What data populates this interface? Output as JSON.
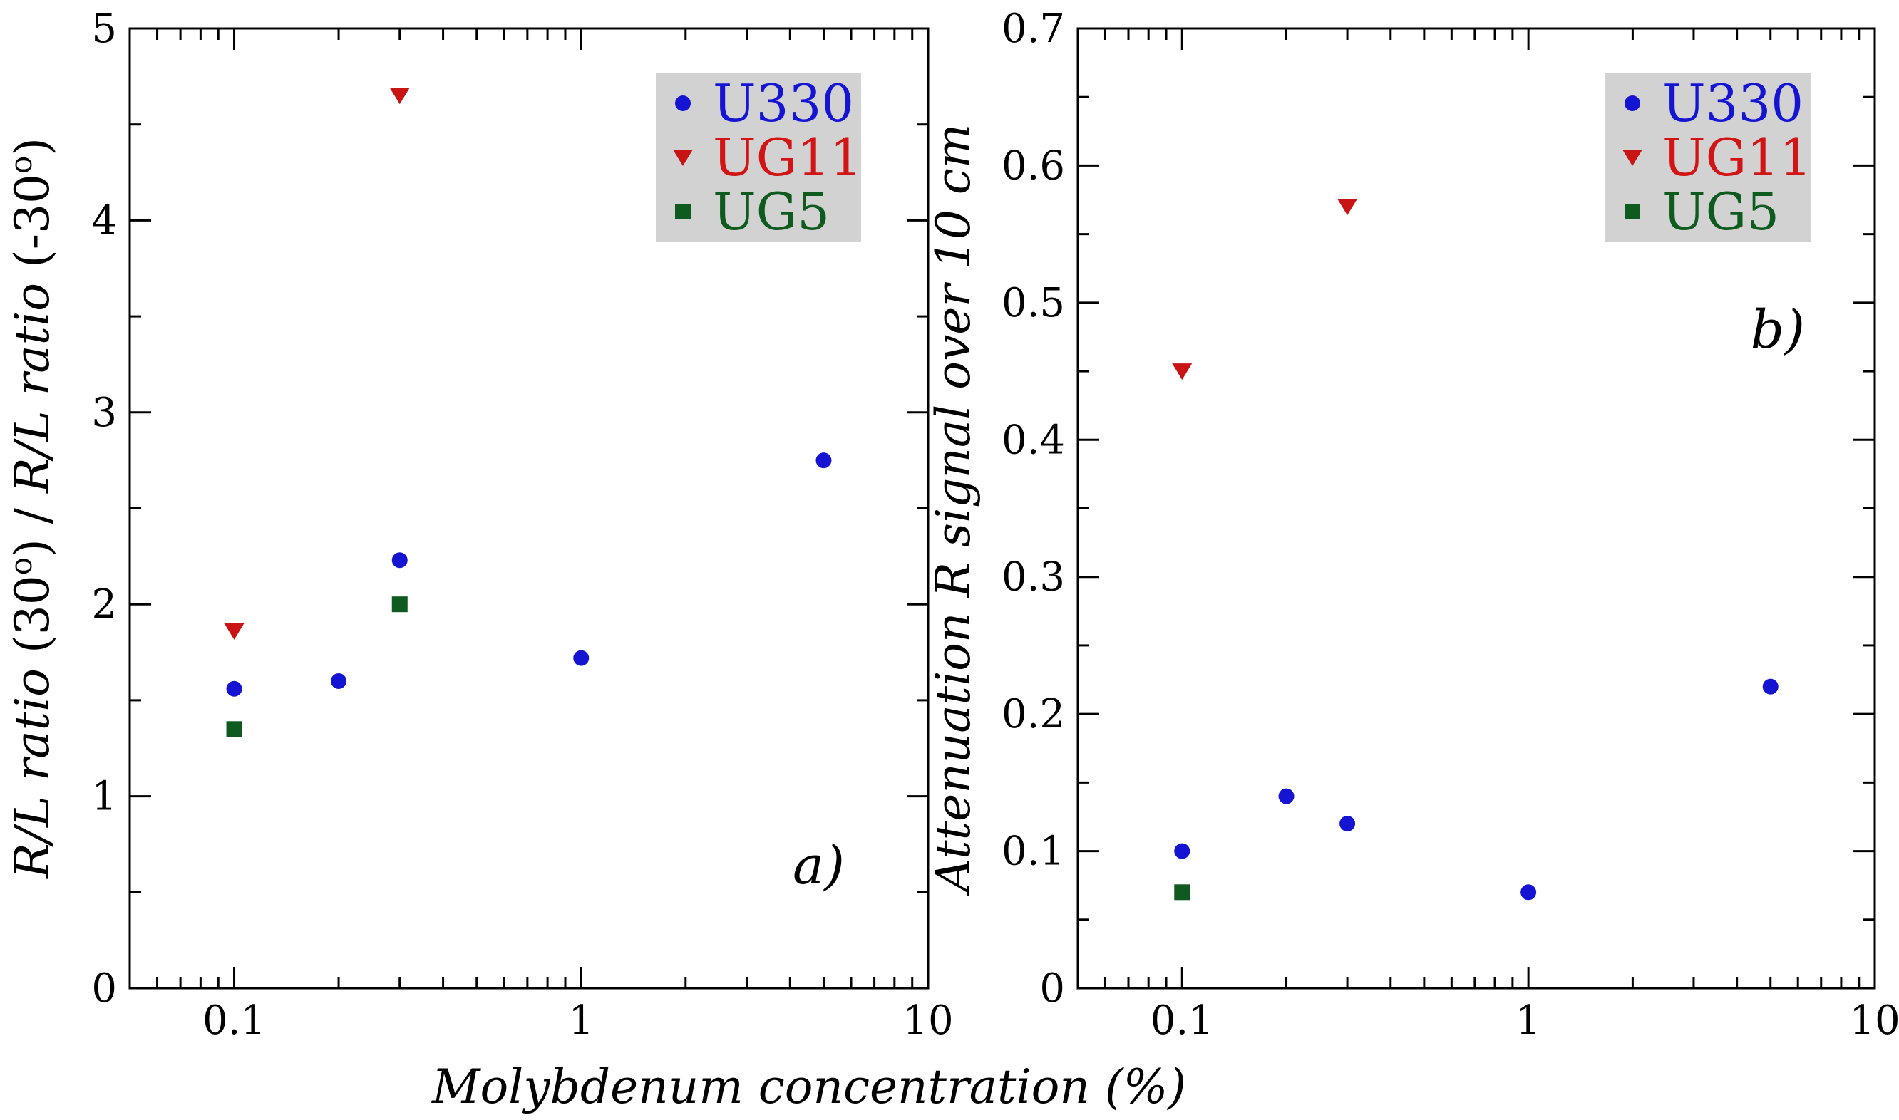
{
  "figure": {
    "xlabel": "Molybdenum concentration (%)"
  },
  "chart_data": [
    {
      "type": "scatter",
      "panel_label": "a)",
      "ylabel_parts": [
        "R/L ratio",
        " (30",
        "o",
        ") / ",
        "R/L ratio",
        " (-30",
        "o",
        ")"
      ],
      "xscale": "log",
      "xlim": [
        0.05,
        10
      ],
      "ylim": [
        0,
        5
      ],
      "xticks": [
        0.1,
        1,
        10
      ],
      "xtick_labels": [
        "0.1",
        "1",
        "10"
      ],
      "yticks": [
        0,
        1,
        2,
        3,
        4,
        5
      ],
      "ytick_labels": [
        "0",
        "1",
        "2",
        "3",
        "4",
        "5"
      ],
      "legend_position": "top-right",
      "series": [
        {
          "name": "U330",
          "marker": "circle",
          "color": "#1414d2",
          "label_color": "#1414d2",
          "x": [
            0.1,
            0.2,
            0.3,
            1,
            5
          ],
          "y": [
            1.56,
            1.6,
            2.23,
            1.72,
            2.75
          ]
        },
        {
          "name": "UG11",
          "marker": "triangle-down",
          "color": "#c81414",
          "label_color": "#d21414",
          "x": [
            0.1,
            0.3
          ],
          "y": [
            1.86,
            4.65
          ]
        },
        {
          "name": "UG5",
          "marker": "square",
          "color": "#0f5a1e",
          "label_color": "#0f5a1e",
          "x": [
            0.1,
            0.3
          ],
          "y": [
            1.35,
            2.0
          ]
        }
      ]
    },
    {
      "type": "scatter",
      "panel_label": "b)",
      "ylabel_parts": [
        "Attenuation R signal over 10 cm"
      ],
      "xscale": "log",
      "xlim": [
        0.05,
        10
      ],
      "ylim": [
        0,
        0.7
      ],
      "xticks": [
        0.1,
        1,
        10
      ],
      "xtick_labels": [
        "0.1",
        "1",
        "10"
      ],
      "yticks": [
        0,
        0.1,
        0.2,
        0.3,
        0.4,
        0.5,
        0.6,
        0.7
      ],
      "ytick_labels": [
        "0",
        "0.1",
        "0.2",
        "0.3",
        "0.4",
        "0.5",
        "0.6",
        "0.7"
      ],
      "legend_position": "top-right",
      "series": [
        {
          "name": "U330",
          "marker": "circle",
          "color": "#1414d2",
          "label_color": "#1414d2",
          "x": [
            0.1,
            0.2,
            0.3,
            1,
            5
          ],
          "y": [
            0.1,
            0.14,
            0.12,
            0.07,
            0.22
          ]
        },
        {
          "name": "UG11",
          "marker": "triangle-down",
          "color": "#c81414",
          "label_color": "#d21414",
          "x": [
            0.1,
            0.3
          ],
          "y": [
            0.45,
            0.57
          ]
        },
        {
          "name": "UG5",
          "marker": "square",
          "color": "#0f5a1e",
          "label_color": "#0f5a1e",
          "x": [
            0.1
          ],
          "y": [
            0.07
          ]
        }
      ]
    }
  ]
}
